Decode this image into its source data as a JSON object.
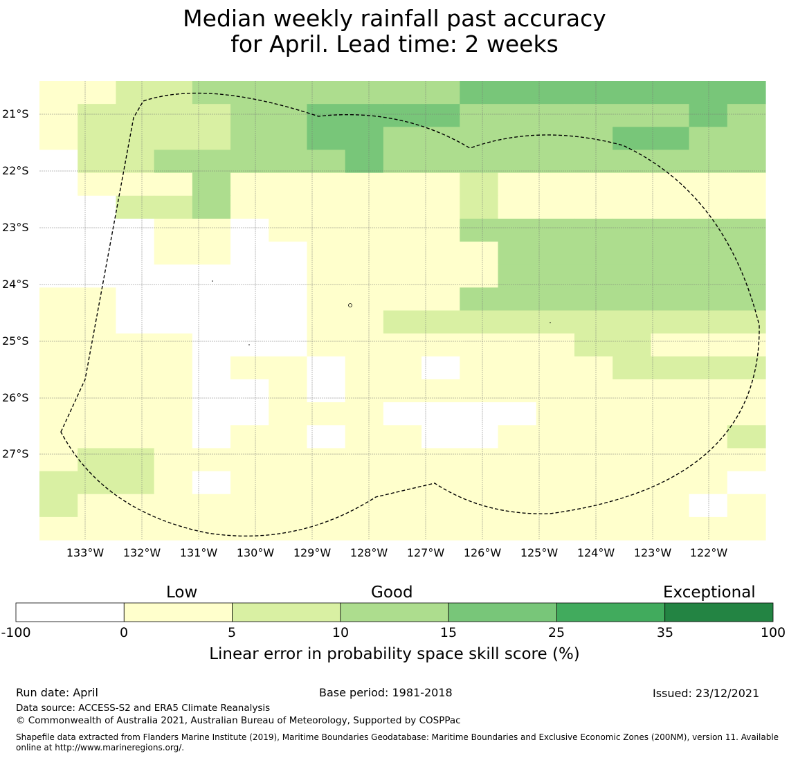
{
  "title": {
    "line1": "Median weekly rainfall past accuracy",
    "line2": "for April. Lead time: 2 weeks"
  },
  "map": {
    "lat_labels": [
      "21°S",
      "22°S",
      "23°S",
      "24°S",
      "25°S",
      "26°S",
      "27°S"
    ],
    "lon_labels": [
      "133°W",
      "132°W",
      "131°W",
      "130°W",
      "129°W",
      "128°W",
      "127°W",
      "126°W",
      "125°W",
      "124°W",
      "123°W",
      "122°W"
    ],
    "boundary_style": "dashed",
    "grid": true
  },
  "colorbar": {
    "categories": [
      "Low",
      "Good",
      "Exceptional"
    ],
    "ticks": [
      "-100",
      "0",
      "5",
      "10",
      "15",
      "25",
      "35",
      "100"
    ],
    "colors": [
      "#ffffff",
      "#ffffcc",
      "#d9f0a3",
      "#addd8e",
      "#78c679",
      "#41ab5d",
      "#238443"
    ],
    "label": "Linear error in probability space skill score (%)"
  },
  "footer": {
    "run_date": "Run date: April",
    "base_period": "Base period: 1981-2018",
    "issued": "Issued: 23/12/2021",
    "data_source": "Data source: ACCESS-S2 and ERA5 Climate Reanalysis",
    "copyright": "© Commonwealth of Australia 2021, Australian Bureau of Meteorology, Supported by COSPPac",
    "shapefile": "Shapefile data extracted from Flanders Marine Institute (2019), Maritime Boundaries Geodatabase: Maritime Boundaries and Exclusive Economic Zones (200NM), version 11. Available online at http://www.marineregions.org/."
  },
  "grid_rows": [
    "1122333333344444444",
    "1222233444433333343",
    "1222233443333334433",
    "0223333343333333333",
    "0111311111121111111",
    "0022311111121111111",
    "0001101111133333333",
    "0001100111113333333",
    "0000000111113333333",
    "1100000111133333333",
    "1100000112222222222",
    "1111000111111122111",
    "1111011011011112222",
    "1111001011111111111",
    "1111001110000111111",
    "1111011011001111112",
    "1221111111111111111",
    "2221011111111111110",
    "2111111111111111101",
    "1111111111111111111"
  ]
}
